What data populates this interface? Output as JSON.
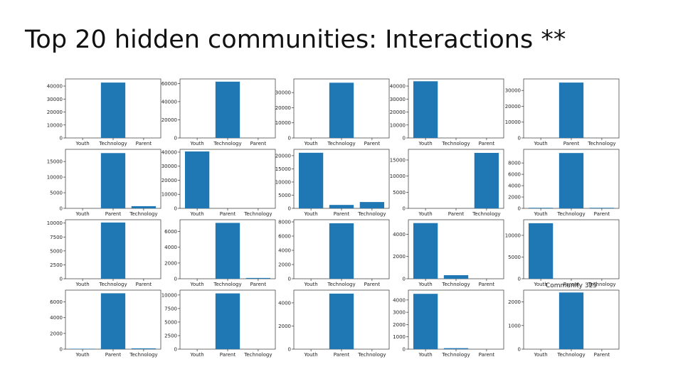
{
  "title": "Top 20 hidden communities: Interactions **",
  "chart_data": [
    {
      "type": "bar",
      "categories": [
        "Youth",
        "Technology",
        "Parent"
      ],
      "values": [
        0,
        42700,
        0
      ],
      "color": "#1f77b4",
      "ylim": [
        0,
        45500
      ],
      "yticks": [
        0,
        10000,
        20000,
        30000,
        40000
      ]
    },
    {
      "type": "bar",
      "categories": [
        "Youth",
        "Technology",
        "Parent"
      ],
      "values": [
        0,
        62000,
        0
      ],
      "color": "#1f77b4",
      "ylim": [
        0,
        65000
      ],
      "yticks": [
        0,
        20000,
        40000,
        60000
      ]
    },
    {
      "type": "bar",
      "categories": [
        "Youth",
        "Technology",
        "Parent"
      ],
      "values": [
        0,
        36500,
        0
      ],
      "color": "#1f77b4",
      "ylim": [
        0,
        39000
      ],
      "yticks": [
        0,
        10000,
        20000,
        30000
      ]
    },
    {
      "type": "bar",
      "categories": [
        "Youth",
        "Technology",
        "Parent"
      ],
      "values": [
        43700,
        0,
        0
      ],
      "color": "#1f77b4",
      "ylim": [
        0,
        45500
      ],
      "yticks": [
        0,
        10000,
        20000,
        30000,
        40000
      ]
    },
    {
      "type": "bar",
      "categories": [
        "Youth",
        "Parent",
        "Technology"
      ],
      "values": [
        0,
        35000,
        0
      ],
      "color": "#1f77b4",
      "ylim": [
        0,
        37300
      ],
      "yticks": [
        0,
        10000,
        20000,
        30000
      ]
    },
    {
      "type": "bar",
      "categories": [
        "Youth",
        "Parent",
        "Technology"
      ],
      "values": [
        0,
        17700,
        700
      ],
      "color": "#1f77b4",
      "ylim": [
        0,
        18900
      ],
      "yticks": [
        0,
        5000,
        10000,
        15000
      ]
    },
    {
      "type": "bar",
      "categories": [
        "Youth",
        "Parent",
        "Technology"
      ],
      "values": [
        40500,
        0,
        0
      ],
      "color": "#1f77b4",
      "ylim": [
        0,
        42000
      ],
      "yticks": [
        0,
        10000,
        20000,
        30000,
        40000
      ]
    },
    {
      "type": "bar",
      "categories": [
        "Youth",
        "Parent",
        "Technology"
      ],
      "values": [
        21100,
        1300,
        2400
      ],
      "color": "#1f77b4",
      "ylim": [
        0,
        22400
      ],
      "yticks": [
        0,
        5000,
        10000,
        15000,
        20000
      ]
    },
    {
      "type": "bar",
      "categories": [
        "Youth",
        "Parent",
        "Technology"
      ],
      "values": [
        0,
        0,
        17200
      ],
      "color": "#1f77b4",
      "ylim": [
        0,
        18300
      ],
      "yticks": [
        0,
        5000,
        10000,
        15000
      ]
    },
    {
      "type": "bar",
      "categories": [
        "Youth",
        "Technology",
        "Parent"
      ],
      "values": [
        100,
        9750,
        100
      ],
      "color": "#1f77b4",
      "ylim": [
        0,
        10400
      ],
      "yticks": [
        0,
        2000,
        4000,
        6000,
        8000
      ]
    },
    {
      "type": "bar",
      "categories": [
        "Youth",
        "Technology",
        "Parent"
      ],
      "values": [
        0,
        10100,
        0
      ],
      "color": "#1f77b4",
      "ylim": [
        0,
        10600
      ],
      "yticks": [
        0,
        2500,
        5000,
        7500,
        10000
      ]
    },
    {
      "type": "bar",
      "categories": [
        "Youth",
        "Technology",
        "Parent"
      ],
      "values": [
        0,
        7100,
        100
      ],
      "color": "#1f77b4",
      "ylim": [
        0,
        7500
      ],
      "yticks": [
        0,
        2000,
        4000,
        6000
      ]
    },
    {
      "type": "bar",
      "categories": [
        "Youth",
        "Technology",
        "Parent"
      ],
      "values": [
        0,
        7800,
        0
      ],
      "color": "#1f77b4",
      "ylim": [
        0,
        8300
      ],
      "yticks": [
        0,
        2000,
        4000,
        6000,
        8000
      ]
    },
    {
      "type": "bar",
      "categories": [
        "Youth",
        "Technology",
        "Parent"
      ],
      "values": [
        5000,
        320,
        0
      ],
      "color": "#1f77b4",
      "ylim": [
        0,
        5300
      ],
      "yticks": [
        0,
        2000,
        4000
      ]
    },
    {
      "type": "bar",
      "categories": [
        "Youth",
        "Parent",
        "Technology"
      ],
      "values": [
        12800,
        0,
        0
      ],
      "color": "#1f77b4",
      "ylim": [
        0,
        13600
      ],
      "yticks": [
        0,
        5000,
        10000
      ]
    },
    {
      "type": "bar",
      "categories": [
        "Youth",
        "Parent",
        "Technology"
      ],
      "values": [
        50,
        7100,
        100
      ],
      "color": "#1f77b4",
      "ylim": [
        0,
        7500
      ],
      "yticks": [
        0,
        2000,
        4000,
        6000
      ]
    },
    {
      "type": "bar",
      "categories": [
        "Youth",
        "Parent",
        "Technology"
      ],
      "values": [
        0,
        10300,
        0
      ],
      "color": "#1f77b4",
      "ylim": [
        0,
        10900
      ],
      "yticks": [
        0,
        2500,
        5000,
        7500,
        10000
      ]
    },
    {
      "type": "bar",
      "categories": [
        "Youth",
        "Parent",
        "Technology"
      ],
      "values": [
        0,
        4800,
        0
      ],
      "color": "#1f77b4",
      "ylim": [
        0,
        5100
      ],
      "yticks": [
        0,
        2000,
        4000
      ]
    },
    {
      "type": "bar",
      "categories": [
        "Youth",
        "Technology",
        "Parent"
      ],
      "values": [
        4500,
        80,
        0
      ],
      "color": "#1f77b4",
      "ylim": [
        0,
        4800
      ],
      "yticks": [
        0,
        1000,
        2000,
        3000,
        4000
      ]
    },
    {
      "type": "bar",
      "title": "Community 325",
      "categories": [
        "Youth",
        "Technology",
        "Parent"
      ],
      "values": [
        0,
        2400,
        0
      ],
      "color": "#1f77b4",
      "ylim": [
        0,
        2500
      ],
      "yticks": [
        0,
        1000,
        2000
      ]
    }
  ]
}
